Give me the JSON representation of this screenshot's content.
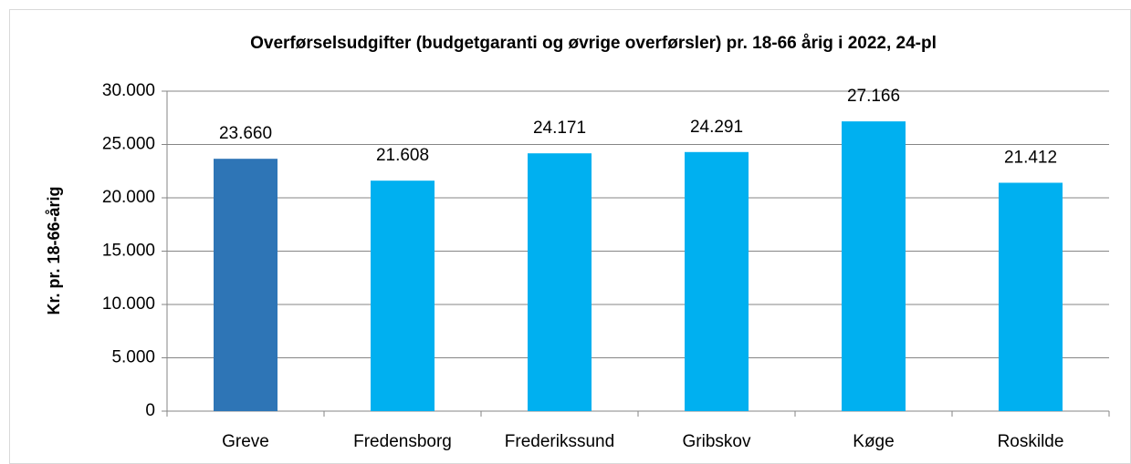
{
  "chart_data": {
    "type": "bar",
    "title": "Overførselsudgifter (budgetgaranti og øvrige overførsler) pr. 18-66 årig i 2022, 24-pl",
    "y_label": "Kr. pr. 18-66-årig",
    "categories": [
      "Greve",
      "Fredensborg",
      "Frederikssund",
      "Gribskov",
      "Køge",
      "Roskilde"
    ],
    "values": [
      23660,
      21608,
      24171,
      24291,
      27166,
      21412
    ],
    "value_labels": [
      "23.660",
      "21.608",
      "24.171",
      "24.291",
      "27.166",
      "21.412"
    ],
    "colors": [
      "#2e75b6",
      "#00b0f0",
      "#00b0f0",
      "#00b0f0",
      "#00b0f0",
      "#00b0f0"
    ],
    "ylim": [
      0,
      30000
    ],
    "yticks": [
      0,
      {
        "value": 5000,
        "label": "5.000"
      },
      {
        "value": 10000,
        "label": "10.000"
      },
      {
        "value": 15000,
        "label": "15.000"
      },
      {
        "value": 20000,
        "label": "20.000"
      },
      {
        "value": 25000,
        "label": "25.000"
      },
      {
        "value": 30000,
        "label": "30.000"
      }
    ],
    "grid": true
  }
}
